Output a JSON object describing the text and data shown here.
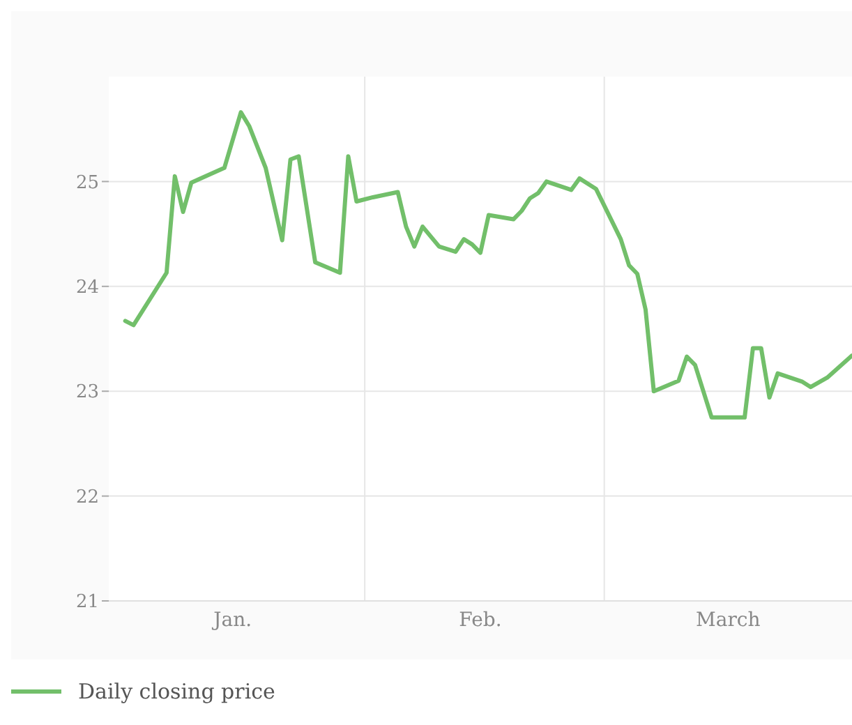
{
  "chart_data": {
    "type": "line",
    "x": [
      "--01-03",
      "--01-04",
      "--01-08",
      "--01-09",
      "--01-10",
      "--01-11",
      "--01-15",
      "--01-17",
      "--01-18",
      "--01-20",
      "--01-22",
      "--01-23",
      "--01-24",
      "--01-26",
      "--01-29",
      "--01-30",
      "--01-31",
      "--02-02",
      "--02-05",
      "--02-06",
      "--02-07",
      "--02-08",
      "--02-10",
      "--02-12",
      "--02-13",
      "--02-14",
      "--02-15",
      "--02-16",
      "--02-19",
      "--02-20",
      "--02-21",
      "--02-22",
      "--02-23",
      "--02-26",
      "--02-27",
      "--02-29",
      "--03-03",
      "--03-04",
      "--03-05",
      "--03-06",
      "--03-07",
      "--03-10",
      "--03-11",
      "--03-12",
      "--03-14",
      "--03-18",
      "--03-19",
      "--03-20",
      "--03-21",
      "--03-22",
      "--03-25",
      "--03-26",
      "--03-28",
      "--03-31"
    ],
    "series": [
      {
        "name": "Daily closing price",
        "color": "#72bf6a",
        "values": [
          23.67,
          23.63,
          24.13,
          25.05,
          24.71,
          24.99,
          25.13,
          25.66,
          25.53,
          25.13,
          24.44,
          25.21,
          25.24,
          24.23,
          24.13,
          25.24,
          24.81,
          24.85,
          24.9,
          24.57,
          24.38,
          24.57,
          24.38,
          24.33,
          24.45,
          24.4,
          24.32,
          24.68,
          24.64,
          24.72,
          24.84,
          24.89,
          25.0,
          24.92,
          25.03,
          24.93,
          24.45,
          24.2,
          24.12,
          23.78,
          23.0,
          23.1,
          23.33,
          23.25,
          22.75,
          22.75,
          23.41,
          23.41,
          22.94,
          23.17,
          23.09,
          23.04,
          23.13,
          23.34
        ]
      }
    ],
    "xlim": [
      "--01-01",
      "--03-31"
    ],
    "xticks": [
      {
        "value": "--01-16",
        "label": "Jan."
      },
      {
        "value": "--02-01",
        "label": null
      },
      {
        "value": "--02-15",
        "label": "Feb."
      },
      {
        "value": "--03-01",
        "label": null
      },
      {
        "value": "--03-16",
        "label": "March"
      }
    ],
    "ylim": [
      21,
      26
    ],
    "yticks": [
      21,
      22,
      23,
      24,
      25
    ],
    "grid": true,
    "legend": "bottom left",
    "marker": "none",
    "line_style": "solid"
  }
}
